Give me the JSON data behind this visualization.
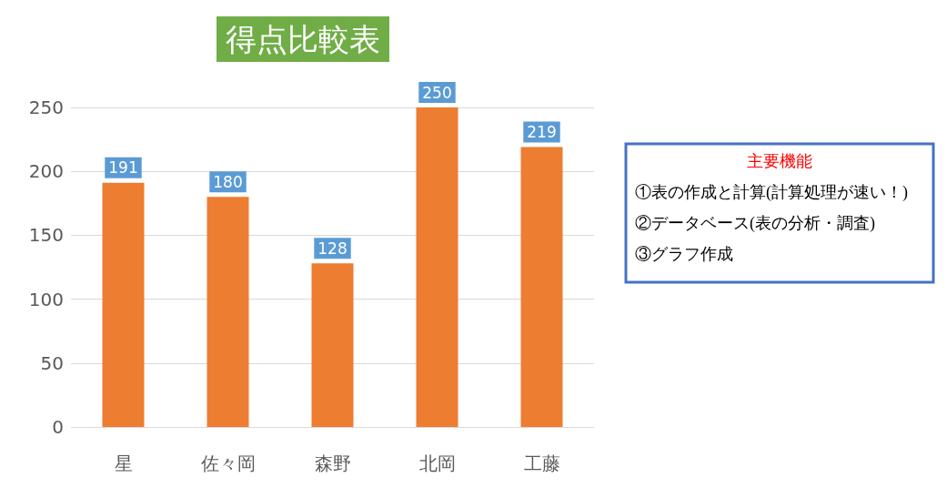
{
  "chart_data": {
    "type": "bar",
    "title": "得点比較表",
    "categories": [
      "星",
      "佐々岡",
      "森野",
      "北岡",
      "工藤"
    ],
    "values": [
      191,
      180,
      128,
      250,
      219
    ],
    "color": "#ed7d31",
    "ylim": [
      0,
      250
    ],
    "yticks": [
      0,
      50,
      100,
      150,
      200,
      250
    ],
    "grid": "y",
    "data_labels": true,
    "annotations": [
      "主要機能",
      "①表の作成と計算(計算処理が速い！)",
      "②データベース(表の分析・調査)",
      "③グラフ作成"
    ]
  }
}
